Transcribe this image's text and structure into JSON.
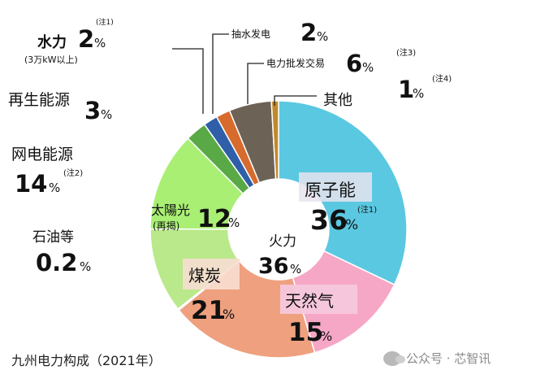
{
  "chart_data": {
    "type": "pie",
    "subtype": "donut",
    "title": "九州电力构成（2021年）",
    "slices": [
      {
        "label": "原子能",
        "value": 36,
        "note": "(注1)",
        "color": "#5bc8e1"
      },
      {
        "label": "天然气",
        "value": 15,
        "color": "#f7a7c6"
      },
      {
        "label": "煤炭",
        "value": 21,
        "color": "#efa07f"
      },
      {
        "label": "石油等",
        "value": 0.2,
        "color": "#d8d8d8"
      },
      {
        "label": "太陽光",
        "sublabel": "(再揭)",
        "value": 12,
        "color": "#b9e98a"
      },
      {
        "label": "网电能源",
        "value": 14,
        "note": "(注2)",
        "color": "#a9ef74"
      },
      {
        "label": "再生能源",
        "value": 3,
        "color": "#59a946"
      },
      {
        "label": "水力",
        "sublabel": "(3万kW以上)",
        "value": 2,
        "note": "(注1)",
        "color": "#2f5fa8"
      },
      {
        "label": "抽水发电",
        "value": 2,
        "color": "#d76a2d"
      },
      {
        "label": "电力批发交易",
        "value": 6,
        "note": "(注3)",
        "color": "#6d6256"
      },
      {
        "label": "其他",
        "value": 1,
        "note": "(注4)",
        "color": "#c08a2a"
      }
    ],
    "center_label": "火力",
    "center_value": 36
  },
  "labels": {
    "nuclear": {
      "name": "原子能",
      "pct": "36",
      "note": "(注1)"
    },
    "gas": {
      "name": "天然气",
      "pct": "15"
    },
    "coal": {
      "name": "煤炭",
      "pct": "21"
    },
    "thermal": {
      "name": "火力",
      "pct": "36"
    },
    "solar": {
      "name": "太陽光",
      "sub": "(再揭)",
      "pct": "12"
    },
    "oil": {
      "name": "石油等",
      "pct": "0.2"
    },
    "net": {
      "name": "网电能源",
      "pct": "14",
      "note": "(注2)"
    },
    "renew": {
      "name": "再生能源",
      "pct": "3"
    },
    "hydro": {
      "name": "水力",
      "sub": "(3万kW以上)",
      "pct": "2",
      "note": "(注1)"
    },
    "pumped": {
      "name": "抽水发电",
      "pct": "2"
    },
    "wholesale": {
      "name": "电力批发交易",
      "pct": "6",
      "note": "(注3)"
    },
    "other": {
      "name": "其他",
      "pct": "1",
      "note": "(注4)"
    },
    "percent": "%"
  },
  "footer": "九州电力构成（2021年）",
  "watermark": "公众号 · 芯智讯"
}
